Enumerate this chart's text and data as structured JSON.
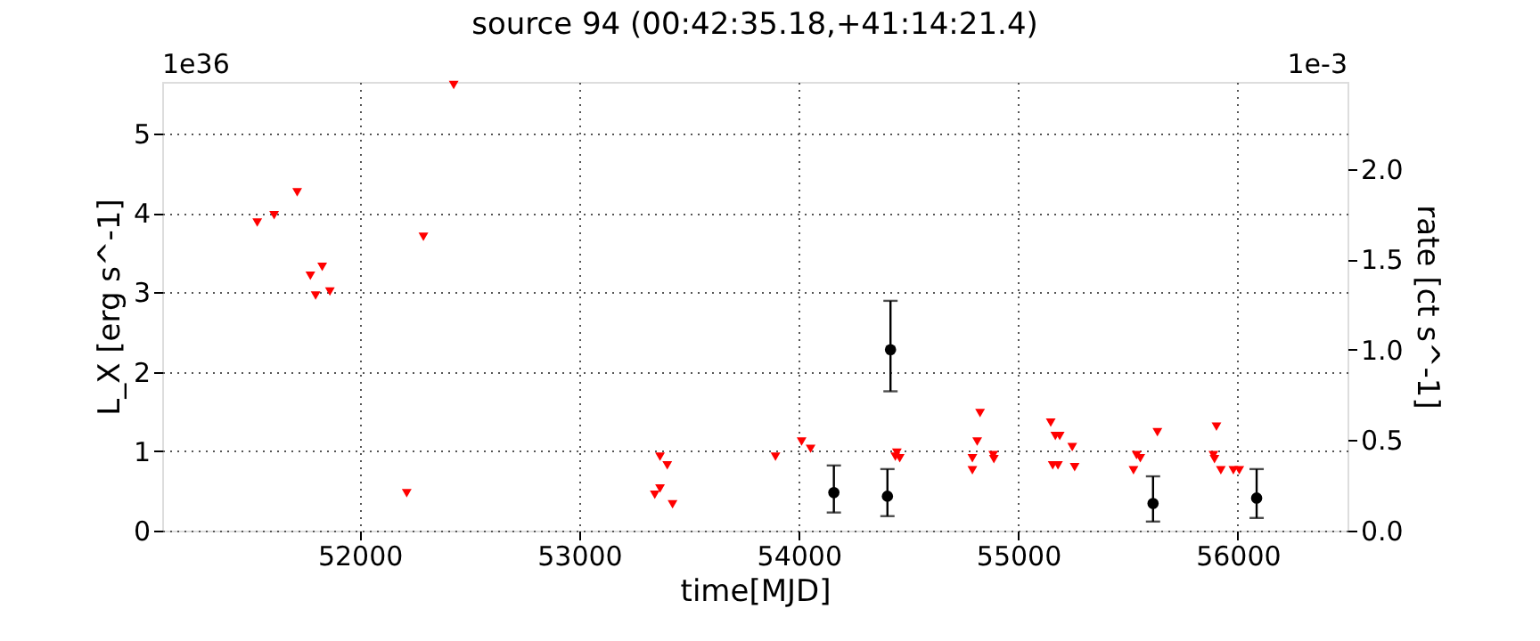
{
  "chart_data": {
    "type": "scatter",
    "title": "source 94    (00:42:35.18,+41:14:21.4)",
    "xlabel": "time[MJD]",
    "ylabel": "L_X [erg s^-1]",
    "y2label": "rate [ct s^-1]",
    "annotations": [
      "1e36",
      "1e-3"
    ],
    "xlim": [
      51100,
      56500
    ],
    "xticks": [
      52000,
      53000,
      54000,
      55000,
      56000
    ],
    "ylim": [
      0,
      5.65
    ],
    "yticks": [
      0,
      1,
      2,
      3,
      4,
      5
    ],
    "y2lim": [
      0,
      2.48
    ],
    "y2ticks": [
      {
        "value": 0,
        "label": "0.0"
      },
      {
        "value": 0.5,
        "label": "0.5"
      },
      {
        "value": 1,
        "label": "1.0"
      },
      {
        "value": 1.5,
        "label": "1.5"
      },
      {
        "value": 2,
        "label": "2.0"
      }
    ],
    "grid": true,
    "series": [
      {
        "color": "#ff0000",
        "marker": "triangle",
        "axis": "y",
        "x": [
          51533,
          51610,
          51715,
          51775,
          51829,
          51799,
          51864,
          52428,
          52290,
          52214,
          53368,
          53401,
          53368,
          53344,
          53425,
          53894,
          54013,
          54054,
          54447,
          54460,
          54440,
          54791,
          54813,
          54826,
          54791,
          54886,
          54889,
          55148,
          55169,
          55189,
          55157,
          55181,
          55246,
          55257,
          55525,
          55539,
          55556,
          55634,
          55889,
          55903,
          55894,
          55923,
          55980,
          56007
        ],
        "values": [
          3.88,
          3.97,
          4.26,
          3.21,
          3.32,
          2.96,
          3.01,
          5.61,
          3.7,
          0.47,
          0.93,
          0.82,
          0.53,
          0.45,
          0.33,
          0.93,
          1.12,
          1.03,
          0.98,
          0.91,
          0.93,
          0.91,
          1.12,
          1.48,
          0.76,
          0.95,
          0.9,
          1.36,
          1.19,
          1.19,
          0.82,
          0.82,
          1.05,
          0.8,
          0.76,
          0.95,
          0.91,
          1.24,
          0.95,
          1.31,
          0.9,
          0.76,
          0.76,
          0.76
        ]
      },
      {
        "color": "#000000",
        "marker": "circle",
        "axis": "y2",
        "x": [
          54160,
          54404,
          54418,
          55614,
          56086
        ],
        "values": [
          0.21,
          0.19,
          1.0,
          0.15,
          0.18
        ],
        "errors": [
          [
            0.1,
            0.36
          ],
          [
            0.08,
            0.34
          ],
          [
            0.77,
            1.27
          ],
          [
            0.05,
            0.3
          ],
          [
            0.07,
            0.34
          ]
        ]
      }
    ]
  }
}
